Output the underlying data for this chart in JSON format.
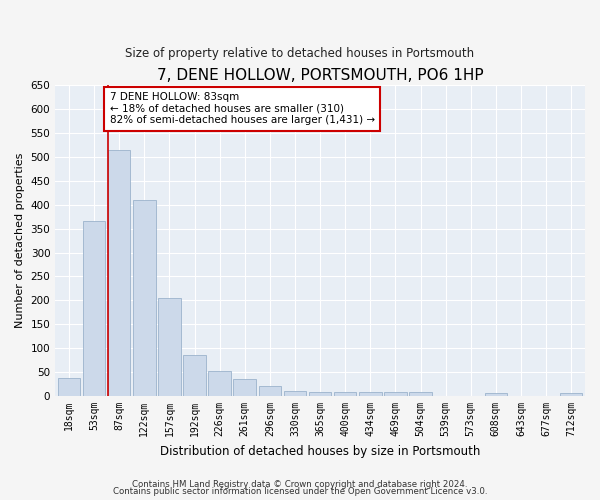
{
  "title": "7, DENE HOLLOW, PORTSMOUTH, PO6 1HP",
  "subtitle": "Size of property relative to detached houses in Portsmouth",
  "xlabel": "Distribution of detached houses by size in Portsmouth",
  "ylabel": "Number of detached properties",
  "bar_color": "#ccd9ea",
  "bar_edge_color": "#9bb3cc",
  "categories": [
    "18sqm",
    "53sqm",
    "87sqm",
    "122sqm",
    "157sqm",
    "192sqm",
    "226sqm",
    "261sqm",
    "296sqm",
    "330sqm",
    "365sqm",
    "400sqm",
    "434sqm",
    "469sqm",
    "504sqm",
    "539sqm",
    "573sqm",
    "608sqm",
    "643sqm",
    "677sqm",
    "712sqm"
  ],
  "values": [
    38,
    365,
    515,
    410,
    205,
    85,
    53,
    35,
    22,
    11,
    8,
    8,
    8,
    8,
    8,
    0,
    0,
    6,
    0,
    0,
    6
  ],
  "ylim": [
    0,
    650
  ],
  "yticks": [
    0,
    50,
    100,
    150,
    200,
    250,
    300,
    350,
    400,
    450,
    500,
    550,
    600,
    650
  ],
  "vline_index": 2,
  "annotation_text": "7 DENE HOLLOW: 83sqm\n← 18% of detached houses are smaller (310)\n82% of semi-detached houses are larger (1,431) →",
  "annotation_box_color": "#ffffff",
  "annotation_box_edge": "#cc0000",
  "vline_color": "#cc0000",
  "plot_bg_color": "#e8eef5",
  "fig_bg_color": "#f5f5f5",
  "grid_color": "#ffffff",
  "footer_line1": "Contains HM Land Registry data © Crown copyright and database right 2024.",
  "footer_line2": "Contains public sector information licensed under the Open Government Licence v3.0."
}
